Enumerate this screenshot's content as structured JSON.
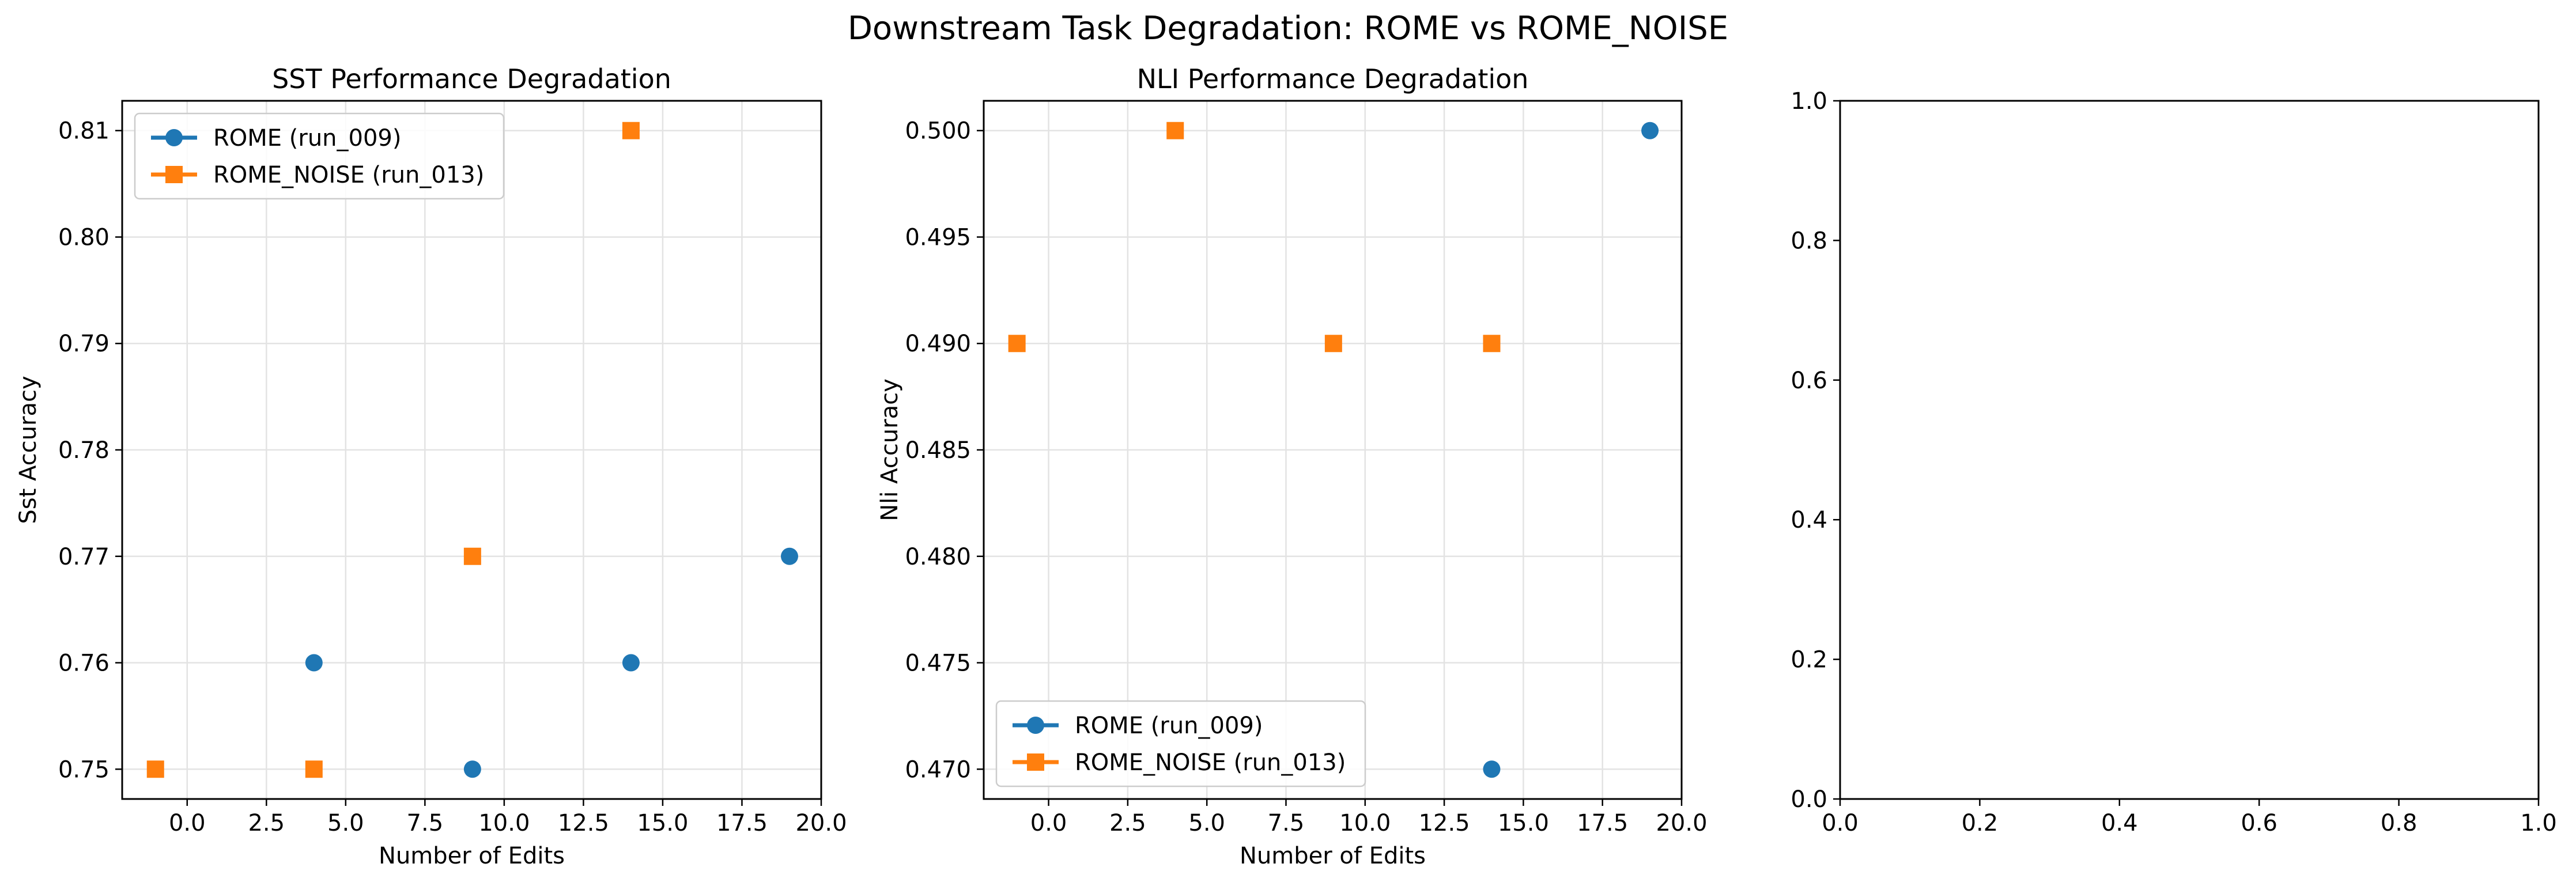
{
  "figure": {
    "title": "Downstream Task Degradation: ROME vs ROME_NOISE"
  },
  "colors": {
    "rome": "#1f77b4",
    "rome_noise": "#ff7f0e",
    "grid": "#e3e3e3",
    "axis": "#000000"
  },
  "chart_data": [
    {
      "type": "scatter",
      "title": "SST Performance Degradation",
      "xlabel": "Number of Edits",
      "ylabel": "Sst Accuracy",
      "xlim": [
        -2.05,
        20
      ],
      "ylim": [
        0.7472,
        0.8128
      ],
      "xticks": [
        0.0,
        2.5,
        5.0,
        7.5,
        10.0,
        12.5,
        15.0,
        17.5,
        20.0
      ],
      "xtick_labels": [
        "0.0",
        "2.5",
        "5.0",
        "7.5",
        "10.0",
        "12.5",
        "15.0",
        "17.5",
        "20.0"
      ],
      "yticks": [
        0.75,
        0.76,
        0.77,
        0.78,
        0.79,
        0.8,
        0.81
      ],
      "ytick_labels": [
        "0.75",
        "0.76",
        "0.77",
        "0.78",
        "0.79",
        "0.80",
        "0.81"
      ],
      "grid": true,
      "legend": "upper-left",
      "series": [
        {
          "name": "ROME (run_009)",
          "marker": "circle",
          "color_key": "rome",
          "x": [
            4,
            9,
            14,
            19
          ],
          "y": [
            0.76,
            0.75,
            0.76,
            0.77
          ]
        },
        {
          "name": "ROME_NOISE (run_013)",
          "marker": "square",
          "color_key": "rome_noise",
          "x": [
            -1,
            4,
            9,
            14
          ],
          "y": [
            0.75,
            0.75,
            0.77,
            0.81
          ]
        }
      ]
    },
    {
      "type": "scatter",
      "title": "NLI Performance Degradation",
      "xlabel": "Number of Edits",
      "ylabel": "Nli Accuracy",
      "xlim": [
        -2.05,
        20
      ],
      "ylim": [
        0.4686,
        0.5014
      ],
      "xticks": [
        0.0,
        2.5,
        5.0,
        7.5,
        10.0,
        12.5,
        15.0,
        17.5,
        20.0
      ],
      "xtick_labels": [
        "0.0",
        "2.5",
        "5.0",
        "7.5",
        "10.0",
        "12.5",
        "15.0",
        "17.5",
        "20.0"
      ],
      "yticks": [
        0.47,
        0.475,
        0.48,
        0.485,
        0.49,
        0.495,
        0.5
      ],
      "ytick_labels": [
        "0.470",
        "0.475",
        "0.480",
        "0.485",
        "0.490",
        "0.495",
        "0.500"
      ],
      "grid": true,
      "legend": "lower-left",
      "series": [
        {
          "name": "ROME (run_009)",
          "marker": "circle",
          "color_key": "rome",
          "x": [
            14,
            19
          ],
          "y": [
            0.47,
            0.5
          ]
        },
        {
          "name": "ROME_NOISE (run_013)",
          "marker": "square",
          "color_key": "rome_noise",
          "x": [
            -1,
            4,
            9,
            14
          ],
          "y": [
            0.49,
            0.5,
            0.49,
            0.49
          ]
        }
      ]
    },
    {
      "type": "scatter",
      "title": "",
      "xlabel": "",
      "ylabel": "",
      "xlim": [
        0,
        1
      ],
      "ylim": [
        0,
        1
      ],
      "xticks": [
        0.0,
        0.2,
        0.4,
        0.6,
        0.8,
        1.0
      ],
      "xtick_labels": [
        "0.0",
        "0.2",
        "0.4",
        "0.6",
        "0.8",
        "1.0"
      ],
      "yticks": [
        0.0,
        0.2,
        0.4,
        0.6,
        0.8,
        1.0
      ],
      "ytick_labels": [
        "0.0",
        "0.2",
        "0.4",
        "0.6",
        "0.8",
        "1.0"
      ],
      "grid": false,
      "legend": "none",
      "series": []
    }
  ]
}
